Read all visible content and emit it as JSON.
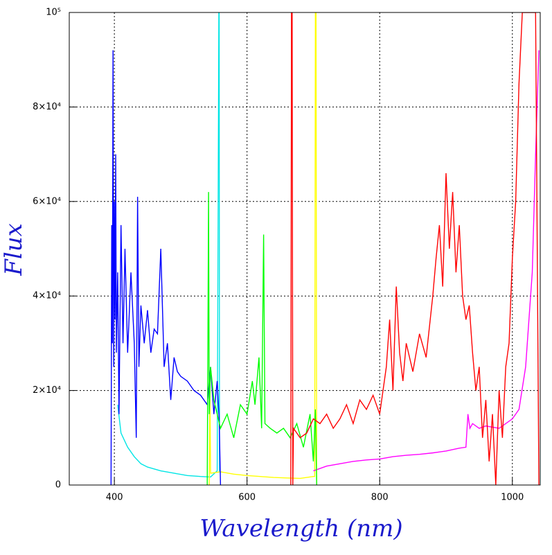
{
  "chart_data": {
    "type": "line",
    "xlabel": "Wavelength (nm)",
    "ylabel": "Flux",
    "xlim": [
      332,
      1042
    ],
    "ylim": [
      0,
      100000
    ],
    "xticks": [
      400,
      600,
      800,
      1000
    ],
    "yticks": [
      0,
      {
        "value": 20000,
        "label": "2×10⁴"
      },
      {
        "value": 40000,
        "label": "4×10⁴"
      },
      {
        "value": 60000,
        "label": "6×10⁴"
      },
      {
        "value": 80000,
        "label": "8×10⁴"
      },
      {
        "value": 100000,
        "label": "10⁵"
      }
    ],
    "grid": true,
    "series": [
      {
        "color": "#00e5e5",
        "x": [
          405,
          410,
          420,
          430,
          440,
          450,
          470,
          490,
          510,
          530,
          545,
          555,
          557.5,
          558,
          558.5,
          560
        ],
        "values": [
          17000,
          11000,
          8000,
          6000,
          4500,
          3800,
          3000,
          2500,
          2000,
          1800,
          1700,
          3000,
          100000,
          100000,
          3000,
          2500
        ]
      },
      {
        "color": "#ffff00",
        "x": [
          543,
          544,
          545,
          560,
          580,
          600,
          620,
          640,
          660,
          680,
          700,
          702,
          703,
          704,
          705
        ],
        "values": [
          0,
          20000,
          2500,
          2800,
          2300,
          2000,
          1800,
          1600,
          1500,
          1400,
          1800,
          1800,
          100000,
          100000,
          0
        ]
      },
      {
        "color": "#ff00ff",
        "x": [
          700,
          720,
          740,
          760,
          780,
          800,
          820,
          840,
          860,
          880,
          900,
          920,
          930,
          933,
          936,
          940,
          950,
          960,
          980,
          1000,
          1010,
          1020,
          1030,
          1035,
          1040
        ],
        "values": [
          3000,
          4000,
          4500,
          5000,
          5300,
          5500,
          6000,
          6300,
          6500,
          6800,
          7200,
          7800,
          8000,
          15000,
          12000,
          13000,
          12000,
          12500,
          12000,
          14000,
          16000,
          25000,
          45000,
          70000,
          92000
        ]
      },
      {
        "color": "#0000ff",
        "x": [
          395,
          396,
          397,
          398,
          399,
          400,
          401,
          402,
          403,
          405,
          407,
          410,
          413,
          416,
          420,
          425,
          430,
          433,
          435,
          437,
          440,
          445,
          450,
          455,
          460,
          465,
          470,
          475,
          480,
          485,
          490,
          495,
          500,
          510,
          520,
          530,
          540,
          545,
          550,
          555,
          558,
          560
        ],
        "values": [
          0,
          55000,
          30000,
          92000,
          25000,
          60000,
          35000,
          70000,
          28000,
          45000,
          15000,
          55000,
          30000,
          50000,
          28000,
          45000,
          30000,
          10000,
          61000,
          25000,
          38000,
          30000,
          37000,
          28000,
          33000,
          32000,
          50000,
          25000,
          30000,
          18000,
          27000,
          24000,
          23000,
          22000,
          20000,
          19000,
          17000,
          25000,
          15000,
          22000,
          14000,
          0
        ]
      },
      {
        "color": "#00ff00",
        "x": [
          540,
          541,
          542,
          543,
          545,
          550,
          560,
          570,
          580,
          590,
          600,
          608,
          612,
          618,
          622,
          625,
          627,
          635,
          645,
          655,
          665,
          675,
          685,
          695,
          700,
          703,
          705
        ],
        "values": [
          0,
          30000,
          62000,
          15000,
          25000,
          18000,
          12000,
          15000,
          10000,
          17000,
          15000,
          22000,
          17000,
          27000,
          12000,
          53000,
          13000,
          12000,
          11000,
          12000,
          10000,
          13000,
          8000,
          15000,
          5000,
          16000,
          0
        ]
      },
      {
        "color": "#ff0000",
        "x": [
          666,
          667,
          668,
          669,
          670,
          680,
          690,
          700,
          710,
          720,
          730,
          740,
          750,
          760,
          770,
          780,
          790,
          800,
          810,
          815,
          820,
          825,
          830,
          835,
          840,
          850,
          860,
          870,
          880,
          885,
          890,
          895,
          900,
          905,
          910,
          915,
          920,
          925,
          930,
          935,
          940,
          945,
          950,
          955,
          960,
          965,
          970,
          975,
          980,
          985,
          990,
          995,
          1000,
          1005,
          1010,
          1015,
          1020,
          1025,
          1030,
          1035,
          1040
        ],
        "values": [
          0,
          100000,
          100000,
          0,
          12000,
          10000,
          11000,
          14000,
          13000,
          15000,
          12000,
          14000,
          17000,
          13000,
          18000,
          16000,
          19000,
          15000,
          25000,
          35000,
          20000,
          42000,
          28000,
          22000,
          30000,
          24000,
          32000,
          27000,
          40000,
          48000,
          55000,
          42000,
          66000,
          50000,
          62000,
          45000,
          55000,
          40000,
          35000,
          38000,
          28000,
          20000,
          25000,
          10000,
          18000,
          5000,
          15000,
          0,
          20000,
          10000,
          25000,
          30000,
          48000,
          60000,
          85000,
          100000,
          100000,
          100000,
          100000,
          100000,
          0
        ]
      }
    ]
  }
}
